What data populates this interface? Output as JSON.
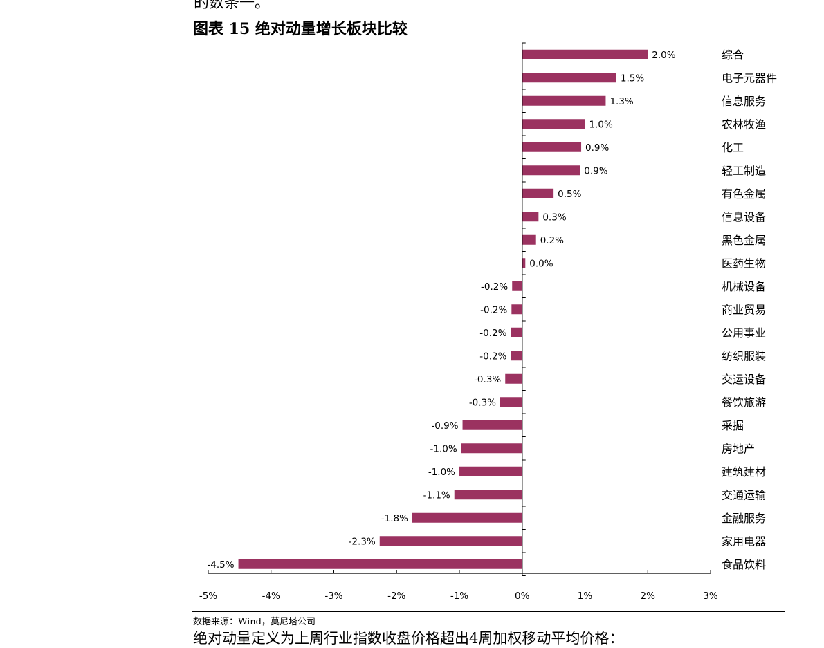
{
  "page": {
    "top_cut_text": "的数条一。",
    "figure_title": "图表 15 绝对动量增长板块比较",
    "source": "数据来源：Wind，莫尼塔公司",
    "bottom_cut_text": "绝对动量定义为上周行业指数收盘价格超出4周加权移动平均价格："
  },
  "chart_data": {
    "type": "bar",
    "orientation": "horizontal",
    "title": "图表 15 绝对动量增长板块比较",
    "xlabel": "",
    "ylabel": "",
    "xlim": [
      -5,
      3
    ],
    "x_ticks": [
      "-5%",
      "-4%",
      "-3%",
      "-2%",
      "-1%",
      "0%",
      "1%",
      "2%",
      "3%"
    ],
    "x_tick_values": [
      -5,
      -4,
      -3,
      -2,
      -1,
      0,
      1,
      2,
      3
    ],
    "bar_color": "#9b3260",
    "grid": false,
    "categories": [
      "综合",
      "电子元器件",
      "信息服务",
      "农林牧渔",
      "化工",
      "轻工制造",
      "有色金属",
      "信息设备",
      "黑色金属",
      "医药生物",
      "机械设备",
      "商业贸易",
      "公用事业",
      "纺织服装",
      "交运设备",
      "餐饮旅游",
      "采掘",
      "房地产",
      "建筑建材",
      "交通运输",
      "金融服务",
      "家用电器",
      "食品饮料"
    ],
    "values": [
      2.0,
      1.5,
      1.33,
      1.0,
      0.94,
      0.92,
      0.5,
      0.26,
      0.22,
      0.05,
      -0.16,
      -0.17,
      -0.18,
      -0.18,
      -0.27,
      -0.35,
      -0.95,
      -0.97,
      -1.0,
      -1.08,
      -1.75,
      -2.27,
      -4.52
    ],
    "labels": [
      "2.0%",
      "1.5%",
      "1.3%",
      "1.0%",
      "0.9%",
      "0.9%",
      "0.5%",
      "0.3%",
      "0.2%",
      "0.0%",
      "-0.2%",
      "-0.2%",
      "-0.2%",
      "-0.2%",
      "-0.3%",
      "-0.3%",
      "-0.9%",
      "-1.0%",
      "-1.0%",
      "-1.1%",
      "-1.8%",
      "-2.3%",
      "-4.5%"
    ]
  }
}
